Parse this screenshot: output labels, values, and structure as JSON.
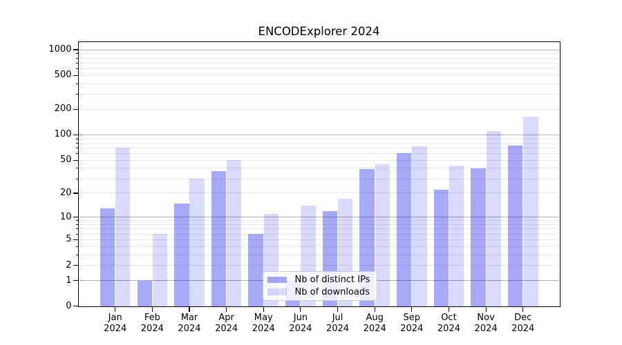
{
  "chart_data": {
    "type": "bar",
    "title": "ENCODExplorer 2024",
    "categories": [
      "Jan",
      "Feb",
      "Mar",
      "Apr",
      "May",
      "Jun",
      "Jul",
      "Aug",
      "Sep",
      "Oct",
      "Nov",
      "Dec"
    ],
    "year": "2024",
    "series": [
      {
        "name": "Nb of distinct IPs",
        "values": [
          13,
          1,
          15,
          37,
          6,
          1,
          12,
          39,
          61,
          22,
          40,
          75
        ],
        "color": "#0000eb",
        "alpha": 0.34
      },
      {
        "name": "Nb of downloads",
        "values": [
          70,
          6,
          30,
          50,
          11,
          14,
          17,
          45,
          73,
          43,
          110,
          165
        ],
        "color": "#0000eb",
        "alpha": 0.15
      }
    ],
    "yscale": "log1p",
    "yticks": [
      0,
      1,
      2,
      5,
      10,
      20,
      50,
      100,
      200,
      500,
      1000
    ],
    "ylim": [
      0,
      1250
    ],
    "xlabel": "",
    "ylabel": "",
    "grid": true,
    "legend_position": "lower-center-inside"
  },
  "colors": {
    "background": "#ffffff",
    "grid_major": "#b0b0b0",
    "grid_minor": "#e8e8e8",
    "spine": "#000000",
    "legend_border": "#cccccc"
  }
}
